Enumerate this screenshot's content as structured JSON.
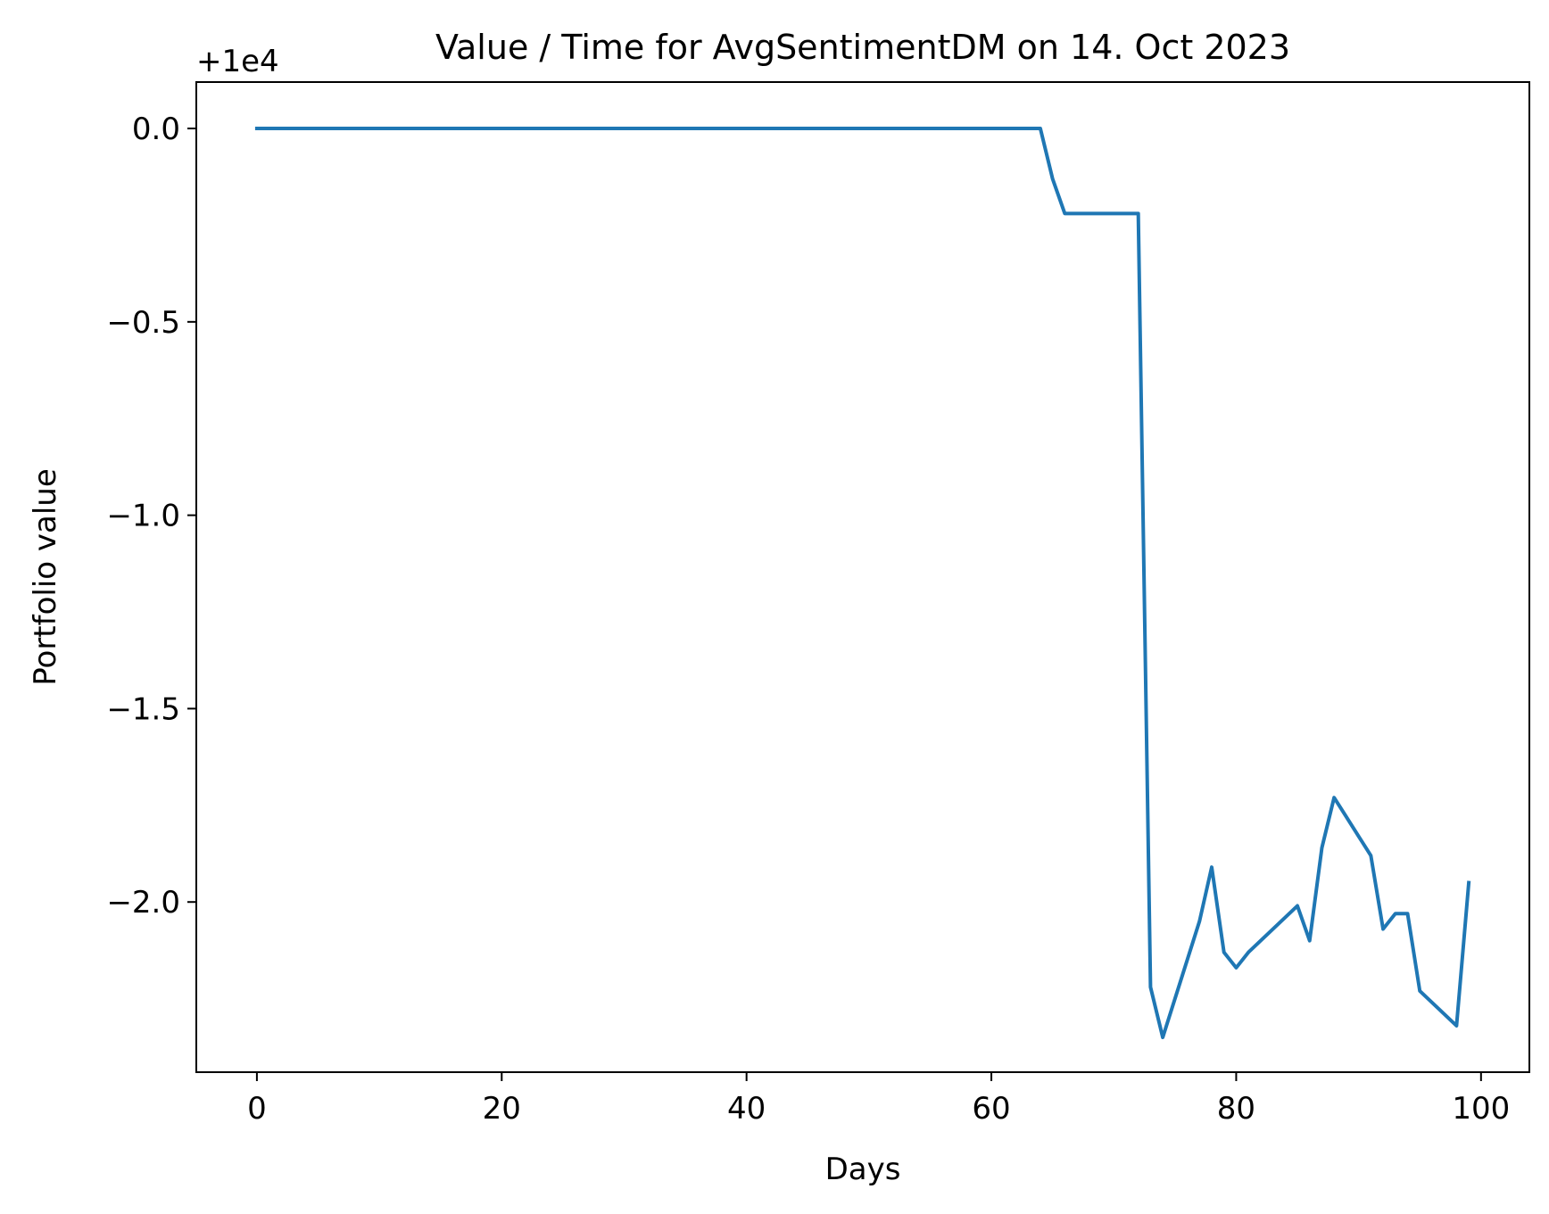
{
  "chart_data": {
    "type": "line",
    "title": "Value / Time for AvgSentimentDM on 14. Oct 2023",
    "xlabel": "Days",
    "ylabel": "Portfolio value",
    "offset_label": "+1e4",
    "xlim": [
      -4.95,
      103.95
    ],
    "ylim": [
      -2.44,
      0.12
    ],
    "x_ticks": [
      0,
      20,
      40,
      60,
      80,
      100
    ],
    "x_tick_labels": [
      "0",
      "20",
      "40",
      "60",
      "80",
      "100"
    ],
    "y_ticks": [
      0.0,
      -0.5,
      -1.0,
      -1.5,
      -2.0
    ],
    "y_tick_labels": [
      "0.0",
      "−0.5",
      "−1.0",
      "−1.5",
      "−2.0"
    ],
    "grid": false,
    "series": [
      {
        "color": "#1f77b4",
        "x": [
          0,
          64,
          65,
          66,
          72,
          73,
          74,
          75,
          76,
          77,
          78,
          79,
          80,
          81,
          82,
          83,
          84,
          85,
          86,
          87,
          88,
          89,
          90,
          91,
          92,
          93,
          94,
          95,
          96,
          97,
          98,
          99
        ],
        "y": [
          0.0,
          0.0,
          -0.13,
          -0.22,
          -0.22,
          -2.22,
          -2.35,
          -2.25,
          -2.15,
          -2.05,
          -1.91,
          -2.13,
          -2.17,
          -2.13,
          -2.1,
          -2.07,
          -2.04,
          -2.01,
          -2.1,
          -1.86,
          -1.73,
          -1.78,
          -1.83,
          -1.88,
          -2.07,
          -2.03,
          -2.03,
          -2.23,
          -2.26,
          -2.29,
          -2.32,
          -1.95
        ]
      }
    ]
  }
}
